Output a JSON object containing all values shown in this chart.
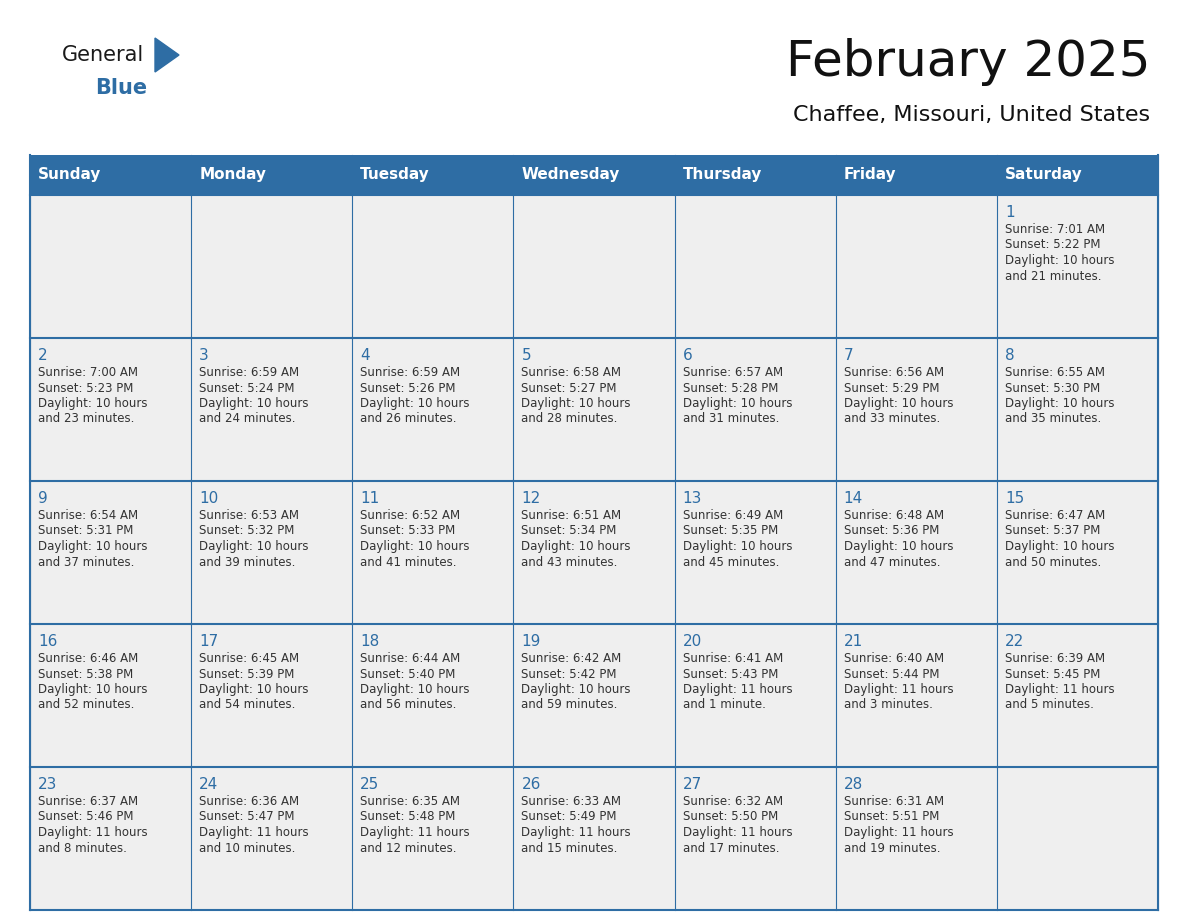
{
  "title": "February 2025",
  "subtitle": "Chaffee, Missouri, United States",
  "header_bg": "#2E6DA4",
  "header_text_color": "#FFFFFF",
  "cell_bg": "#EFEFEF",
  "day_number_color": "#2E6DA4",
  "info_text_color": "#333333",
  "border_color": "#2E6DA4",
  "days_of_week": [
    "Sunday",
    "Monday",
    "Tuesday",
    "Wednesday",
    "Thursday",
    "Friday",
    "Saturday"
  ],
  "weeks": [
    [
      {
        "day": null,
        "info": null
      },
      {
        "day": null,
        "info": null
      },
      {
        "day": null,
        "info": null
      },
      {
        "day": null,
        "info": null
      },
      {
        "day": null,
        "info": null
      },
      {
        "day": null,
        "info": null
      },
      {
        "day": 1,
        "info": "Sunrise: 7:01 AM\nSunset: 5:22 PM\nDaylight: 10 hours\nand 21 minutes."
      }
    ],
    [
      {
        "day": 2,
        "info": "Sunrise: 7:00 AM\nSunset: 5:23 PM\nDaylight: 10 hours\nand 23 minutes."
      },
      {
        "day": 3,
        "info": "Sunrise: 6:59 AM\nSunset: 5:24 PM\nDaylight: 10 hours\nand 24 minutes."
      },
      {
        "day": 4,
        "info": "Sunrise: 6:59 AM\nSunset: 5:26 PM\nDaylight: 10 hours\nand 26 minutes."
      },
      {
        "day": 5,
        "info": "Sunrise: 6:58 AM\nSunset: 5:27 PM\nDaylight: 10 hours\nand 28 minutes."
      },
      {
        "day": 6,
        "info": "Sunrise: 6:57 AM\nSunset: 5:28 PM\nDaylight: 10 hours\nand 31 minutes."
      },
      {
        "day": 7,
        "info": "Sunrise: 6:56 AM\nSunset: 5:29 PM\nDaylight: 10 hours\nand 33 minutes."
      },
      {
        "day": 8,
        "info": "Sunrise: 6:55 AM\nSunset: 5:30 PM\nDaylight: 10 hours\nand 35 minutes."
      }
    ],
    [
      {
        "day": 9,
        "info": "Sunrise: 6:54 AM\nSunset: 5:31 PM\nDaylight: 10 hours\nand 37 minutes."
      },
      {
        "day": 10,
        "info": "Sunrise: 6:53 AM\nSunset: 5:32 PM\nDaylight: 10 hours\nand 39 minutes."
      },
      {
        "day": 11,
        "info": "Sunrise: 6:52 AM\nSunset: 5:33 PM\nDaylight: 10 hours\nand 41 minutes."
      },
      {
        "day": 12,
        "info": "Sunrise: 6:51 AM\nSunset: 5:34 PM\nDaylight: 10 hours\nand 43 minutes."
      },
      {
        "day": 13,
        "info": "Sunrise: 6:49 AM\nSunset: 5:35 PM\nDaylight: 10 hours\nand 45 minutes."
      },
      {
        "day": 14,
        "info": "Sunrise: 6:48 AM\nSunset: 5:36 PM\nDaylight: 10 hours\nand 47 minutes."
      },
      {
        "day": 15,
        "info": "Sunrise: 6:47 AM\nSunset: 5:37 PM\nDaylight: 10 hours\nand 50 minutes."
      }
    ],
    [
      {
        "day": 16,
        "info": "Sunrise: 6:46 AM\nSunset: 5:38 PM\nDaylight: 10 hours\nand 52 minutes."
      },
      {
        "day": 17,
        "info": "Sunrise: 6:45 AM\nSunset: 5:39 PM\nDaylight: 10 hours\nand 54 minutes."
      },
      {
        "day": 18,
        "info": "Sunrise: 6:44 AM\nSunset: 5:40 PM\nDaylight: 10 hours\nand 56 minutes."
      },
      {
        "day": 19,
        "info": "Sunrise: 6:42 AM\nSunset: 5:42 PM\nDaylight: 10 hours\nand 59 minutes."
      },
      {
        "day": 20,
        "info": "Sunrise: 6:41 AM\nSunset: 5:43 PM\nDaylight: 11 hours\nand 1 minute."
      },
      {
        "day": 21,
        "info": "Sunrise: 6:40 AM\nSunset: 5:44 PM\nDaylight: 11 hours\nand 3 minutes."
      },
      {
        "day": 22,
        "info": "Sunrise: 6:39 AM\nSunset: 5:45 PM\nDaylight: 11 hours\nand 5 minutes."
      }
    ],
    [
      {
        "day": 23,
        "info": "Sunrise: 6:37 AM\nSunset: 5:46 PM\nDaylight: 11 hours\nand 8 minutes."
      },
      {
        "day": 24,
        "info": "Sunrise: 6:36 AM\nSunset: 5:47 PM\nDaylight: 11 hours\nand 10 minutes."
      },
      {
        "day": 25,
        "info": "Sunrise: 6:35 AM\nSunset: 5:48 PM\nDaylight: 11 hours\nand 12 minutes."
      },
      {
        "day": 26,
        "info": "Sunrise: 6:33 AM\nSunset: 5:49 PM\nDaylight: 11 hours\nand 15 minutes."
      },
      {
        "day": 27,
        "info": "Sunrise: 6:32 AM\nSunset: 5:50 PM\nDaylight: 11 hours\nand 17 minutes."
      },
      {
        "day": 28,
        "info": "Sunrise: 6:31 AM\nSunset: 5:51 PM\nDaylight: 11 hours\nand 19 minutes."
      },
      {
        "day": null,
        "info": null
      }
    ]
  ]
}
